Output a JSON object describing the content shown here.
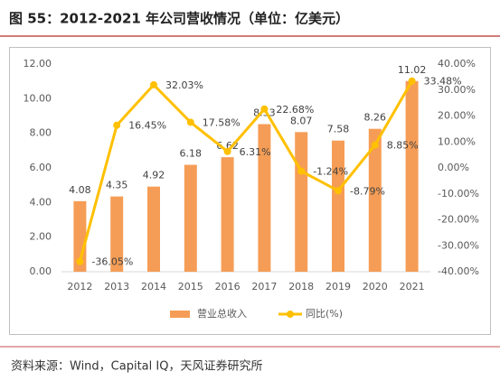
{
  "chart_data": {
    "type": "bar-line",
    "title": "图 55：2012-2021 年公司营收情况（单位：亿美元）",
    "source": "资料来源：Wind，Capital IQ，天风证券研究所",
    "categories": [
      "2012",
      "2013",
      "2014",
      "2015",
      "2016",
      "2017",
      "2018",
      "2019",
      "2020",
      "2021"
    ],
    "series": [
      {
        "name": "营业总收入",
        "type": "bar",
        "color": "#f59d56",
        "axis": "y",
        "values": [
          4.08,
          4.35,
          4.92,
          6.18,
          6.62,
          8.53,
          8.07,
          7.58,
          8.26,
          11.02
        ]
      },
      {
        "name": "同比(%)",
        "type": "line",
        "color": "#ffc000",
        "axis": "y2",
        "values": [
          -36.05,
          16.45,
          32.03,
          17.58,
          6.31,
          22.68,
          -1.24,
          -8.79,
          8.85,
          33.48
        ],
        "value_labels": [
          "-36.05%",
          "16.45%",
          "32.03%",
          "17.58%",
          "6.31%",
          "22.68%",
          "-1.24%",
          "-8.79%",
          "8.85%",
          "33.48%"
        ]
      }
    ],
    "ylim": [
      0,
      12
    ],
    "yticks": [
      {
        "value": 0,
        "label": "0.00"
      },
      {
        "value": 2,
        "label": "2.00"
      },
      {
        "value": 4,
        "label": "4.00"
      },
      {
        "value": 6,
        "label": "6.00"
      },
      {
        "value": 8,
        "label": "8.00"
      },
      {
        "value": 10,
        "label": "10.00"
      },
      {
        "value": 12,
        "label": "12.00"
      }
    ],
    "y2lim": [
      -40,
      40
    ],
    "y2ticks": [
      {
        "value": -40,
        "label": "-40.00%"
      },
      {
        "value": -30,
        "label": "-30.00%"
      },
      {
        "value": -20,
        "label": "-20.00%"
      },
      {
        "value": -10,
        "label": "-10.00%"
      },
      {
        "value": 0,
        "label": "0.00%"
      },
      {
        "value": 10,
        "label": "10.00%"
      },
      {
        "value": 20,
        "label": "20.00%"
      },
      {
        "value": 30,
        "label": "30.00%"
      },
      {
        "value": 40,
        "label": "40.00%"
      }
    ],
    "legend": "bottom"
  }
}
